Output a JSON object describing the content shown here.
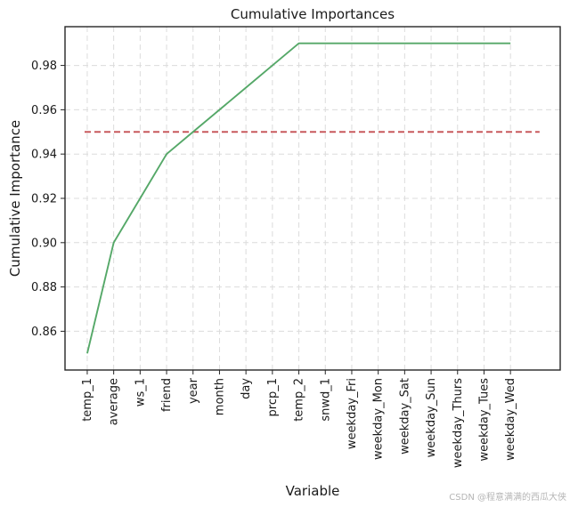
{
  "chart_data": {
    "type": "line",
    "title": "Cumulative Importances",
    "xlabel": "Variable",
    "ylabel": "Cumulative Importance",
    "categories": [
      "temp_1",
      "average",
      "ws_1",
      "friend",
      "year",
      "month",
      "day",
      "prcp_1",
      "temp_2",
      "snwd_1",
      "weekday_Fri",
      "weekday_Mon",
      "weekday_Sat",
      "weekday_Sun",
      "weekday_Thurs",
      "weekday_Tues",
      "weekday_Wed"
    ],
    "series": [
      {
        "values": [
          0.85,
          0.9,
          0.92,
          0.94,
          0.95,
          0.96,
          0.97,
          0.98,
          0.99,
          0.99,
          0.99,
          0.99,
          0.99,
          0.99,
          0.99,
          0.99,
          0.99
        ],
        "color": "#55a868"
      }
    ],
    "reference_line": {
      "value": 0.95,
      "style": "dashed",
      "color": "#c44e52",
      "x_start": -0.1,
      "x_end": 17.1
    },
    "ylim": [
      0.8425,
      0.9975
    ],
    "y_ticks": [
      0.86,
      0.88,
      0.9,
      0.92,
      0.94,
      0.96,
      0.98
    ],
    "y_tick_labels": [
      "0.86",
      "0.88",
      "0.90",
      "0.92",
      "0.94",
      "0.96",
      "0.98"
    ],
    "grid": true
  },
  "watermark": "CSDN @程意满满的西瓜大侠"
}
